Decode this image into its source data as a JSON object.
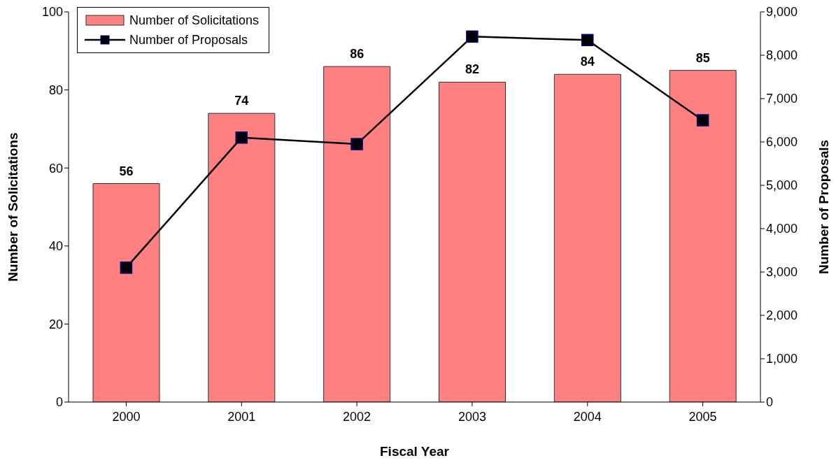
{
  "chart_data": {
    "type": "bar",
    "xlabel": "Fiscal Year",
    "ylabel": "Number of Solicitations",
    "y2label": "Number of Proposals",
    "categories": [
      "2000",
      "2001",
      "2002",
      "2003",
      "2004",
      "2005"
    ],
    "series": [
      {
        "name": "Number of Solicitations",
        "color": "#ff8080",
        "values": [
          56,
          74,
          86,
          82,
          84,
          85
        ],
        "value_labels": [
          "56",
          "74",
          "86",
          "82",
          "84",
          "85"
        ]
      },
      {
        "name": "Number of Proposals",
        "type": "line",
        "axis": "y2",
        "color": "#000000",
        "marker": "square",
        "line_style": "solid",
        "values": [
          3100,
          6100,
          5950,
          8430,
          8350,
          6500
        ]
      }
    ],
    "ylim": [
      0,
      100
    ],
    "yticks": [
      0,
      20,
      40,
      60,
      80,
      100
    ],
    "y2lim": [
      0,
      9000
    ],
    "y2ticks": [
      {
        "value": 0,
        "label": "0"
      },
      {
        "value": 1000,
        "label": "1,000"
      },
      {
        "value": 2000,
        "label": "2,000"
      },
      {
        "value": 3000,
        "label": "3,000"
      },
      {
        "value": 4000,
        "label": "4,000"
      },
      {
        "value": 5000,
        "label": "5,000"
      },
      {
        "value": 6000,
        "label": "6,000"
      },
      {
        "value": 7000,
        "label": "7,000"
      },
      {
        "value": 8000,
        "label": "8,000"
      },
      {
        "value": 9000,
        "label": "9,000"
      }
    ],
    "grid": false,
    "legend": "top left"
  }
}
